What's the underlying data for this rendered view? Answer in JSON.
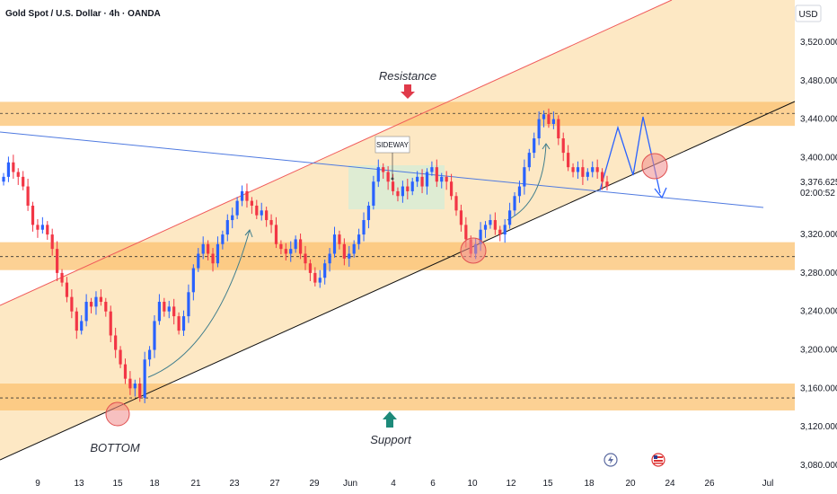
{
  "chart_data": {
    "type": "candlestick",
    "title": "Gold Spot / U.S. Dollar · 4h · OANDA",
    "currency": "USD",
    "ylim": [
      3060,
      3570
    ],
    "y_ticks": [
      "3,520.000",
      "3,480.000",
      "3,440.000",
      "3,400.000",
      "3,320.000",
      "3,280.000",
      "3,240.000",
      "3,200.000",
      "3,160.000",
      "3,120.000",
      "3,080.000"
    ],
    "y_tick_values": [
      3520,
      3480,
      3440,
      3400,
      3320,
      3280,
      3240,
      3200,
      3160,
      3120,
      3080
    ],
    "x_ticks": [
      "9",
      "13",
      "15",
      "18",
      "21",
      "23",
      "27",
      "29",
      "Jun",
      "4",
      "6",
      "10",
      "12",
      "15",
      "18",
      "20",
      "24",
      "26",
      "Jul"
    ],
    "last_price": "3,376.625",
    "countdown": "02:00:52",
    "annotations": {
      "resistance": "Resistance",
      "support": "Support",
      "bottom": "BOTTOM",
      "sideway": "SIDEWAY"
    },
    "zones": {
      "resistance": [
        3433,
        3458
      ],
      "mid_support": [
        3283,
        3312
      ],
      "support": [
        3137,
        3165
      ],
      "resistance_line": 3446,
      "mid_line": 3297,
      "support_line": 3150
    },
    "colors": {
      "up": "#2962ff",
      "down": "#f23645",
      "zone": "#fbc170",
      "channel": "#fde8c4",
      "sideway_box": "#d8ecd6"
    },
    "close_path": [
      3380,
      3395,
      3385,
      3380,
      3370,
      3350,
      3330,
      3325,
      3330,
      3320,
      3305,
      3280,
      3270,
      3255,
      3240,
      3220,
      3230,
      3250,
      3245,
      3255,
      3250,
      3240,
      3215,
      3200,
      3185,
      3170,
      3160,
      3165,
      3150,
      3190,
      3200,
      3230,
      3250,
      3240,
      3245,
      3235,
      3220,
      3235,
      3260,
      3285,
      3300,
      3310,
      3300,
      3290,
      3310,
      3320,
      3335,
      3340,
      3355,
      3365,
      3355,
      3350,
      3340,
      3345,
      3335,
      3330,
      3310,
      3305,
      3300,
      3305,
      3315,
      3300,
      3290,
      3280,
      3270,
      3275,
      3290,
      3300,
      3320,
      3310,
      3295,
      3300,
      3310,
      3320,
      3335,
      3350,
      3375,
      3390,
      3385,
      3375,
      3365,
      3360,
      3370,
      3365,
      3375,
      3380,
      3370,
      3385,
      3390,
      3375,
      3380,
      3375,
      3360,
      3345,
      3330,
      3315,
      3300,
      3310,
      3325,
      3330,
      3335,
      3325,
      3320,
      3330,
      3345,
      3360,
      3370,
      3390,
      3405,
      3420,
      3440,
      3445,
      3435,
      3440,
      3420,
      3405,
      3390,
      3385,
      3390,
      3380,
      3385,
      3390,
      3385,
      3375,
      3370
    ]
  }
}
